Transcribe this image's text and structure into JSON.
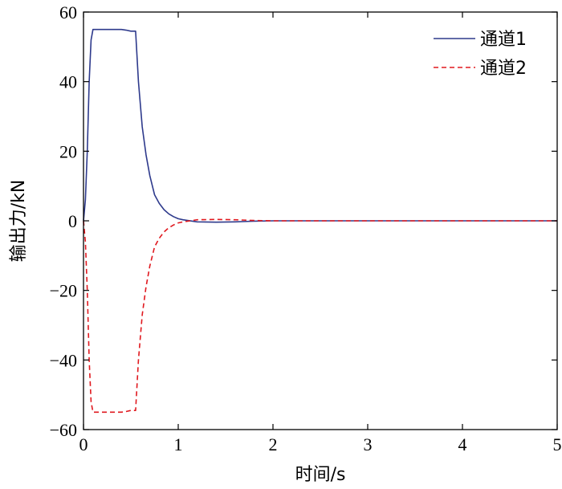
{
  "chart_data": {
    "type": "line",
    "title": "",
    "xlabel": "时间/s",
    "ylabel": "输出力/kN",
    "xlim": [
      0,
      5
    ],
    "ylim": [
      -60,
      60
    ],
    "xticks": [
      0,
      1,
      2,
      3,
      4,
      5
    ],
    "yticks": [
      -60,
      -40,
      -20,
      0,
      20,
      40,
      60
    ],
    "grid": false,
    "legend_position": "top-right",
    "series": [
      {
        "name": "通道1",
        "color": "#2e3a8c",
        "style": "solid",
        "x": [
          0,
          0.02,
          0.04,
          0.06,
          0.08,
          0.1,
          0.2,
          0.3,
          0.4,
          0.45,
          0.5,
          0.55,
          0.58,
          0.62,
          0.66,
          0.7,
          0.75,
          0.8,
          0.85,
          0.9,
          0.95,
          1.0,
          1.05,
          1.1,
          1.2,
          1.4,
          1.6,
          1.7,
          1.8,
          2.0,
          3.0,
          4.0,
          5.0
        ],
        "y": [
          0,
          6,
          20,
          40,
          52,
          55,
          55,
          55,
          55,
          54.8,
          54.5,
          54.5,
          40,
          27,
          19,
          13,
          7.5,
          5,
          3.2,
          2,
          1.2,
          0.6,
          0.3,
          0.1,
          -0.3,
          -0.4,
          -0.3,
          -0.2,
          -0.1,
          0,
          0,
          0,
          0
        ]
      },
      {
        "name": "通道2",
        "color": "#e0191f",
        "style": "dashed",
        "x": [
          0,
          0.02,
          0.04,
          0.06,
          0.08,
          0.1,
          0.2,
          0.3,
          0.4,
          0.45,
          0.5,
          0.55,
          0.58,
          0.62,
          0.66,
          0.7,
          0.75,
          0.8,
          0.85,
          0.9,
          0.95,
          1.0,
          1.05,
          1.1,
          1.2,
          1.4,
          1.6,
          1.7,
          1.8,
          2.0,
          3.0,
          4.0,
          5.0
        ],
        "y": [
          0,
          -6,
          -20,
          -40,
          -52,
          -55,
          -55,
          -55,
          -55,
          -54.8,
          -54.5,
          -54.5,
          -40,
          -27,
          -19,
          -13,
          -7.5,
          -5,
          -3.2,
          -2,
          -1.2,
          -0.6,
          -0.3,
          -0.1,
          0.3,
          0.4,
          0.3,
          0.2,
          0.1,
          0,
          0,
          0,
          0
        ]
      }
    ]
  }
}
